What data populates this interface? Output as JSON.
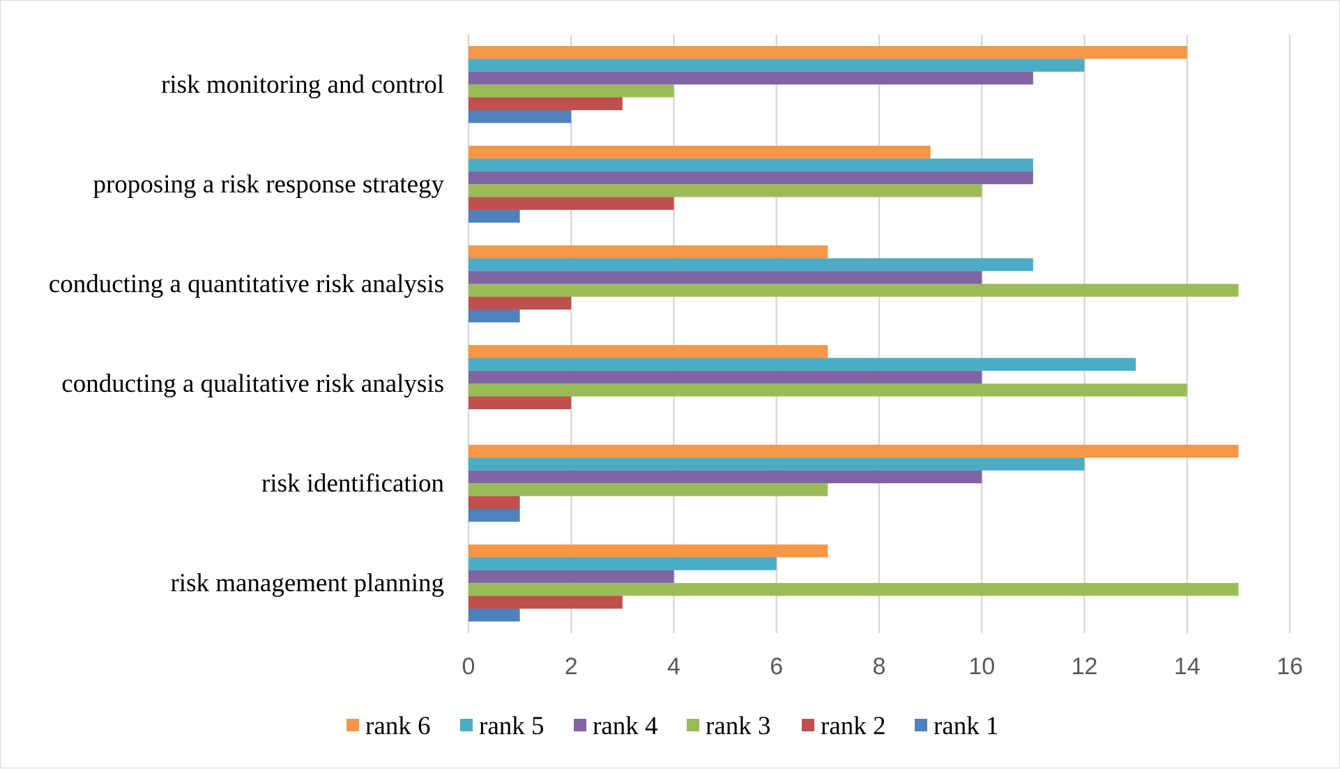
{
  "chart_data": {
    "type": "bar",
    "orientation": "horizontal",
    "title": "",
    "xlabel": "",
    "ylabel": "",
    "xlim": [
      0,
      16
    ],
    "x_ticks": [
      "0",
      "2",
      "4",
      "6",
      "8",
      "10",
      "12",
      "14",
      "16"
    ],
    "grid": true,
    "legend_position": "bottom",
    "categories": [
      "risk monitoring and control",
      "proposing a risk response strategy",
      "conducting a quantitative risk analysis",
      "conducting a qualitative risk analysis",
      "risk identification",
      "risk management planning"
    ],
    "series": [
      {
        "name": "rank 6",
        "color": "#F79646",
        "values": [
          14,
          9,
          7,
          7,
          15,
          7
        ]
      },
      {
        "name": "rank 5",
        "color": "#4BACC6",
        "values": [
          12,
          11,
          11,
          13,
          12,
          6
        ]
      },
      {
        "name": "rank 4",
        "color": "#8064A2",
        "values": [
          11,
          11,
          10,
          10,
          10,
          4
        ]
      },
      {
        "name": "rank 3",
        "color": "#9BBB59",
        "values": [
          4,
          10,
          15,
          14,
          7,
          15
        ]
      },
      {
        "name": "rank 2",
        "color": "#C0504D",
        "values": [
          3,
          4,
          2,
          2,
          1,
          3
        ]
      },
      {
        "name": "rank 1",
        "color": "#4F81BD",
        "values": [
          2,
          1,
          1,
          0,
          1,
          1
        ]
      }
    ]
  }
}
